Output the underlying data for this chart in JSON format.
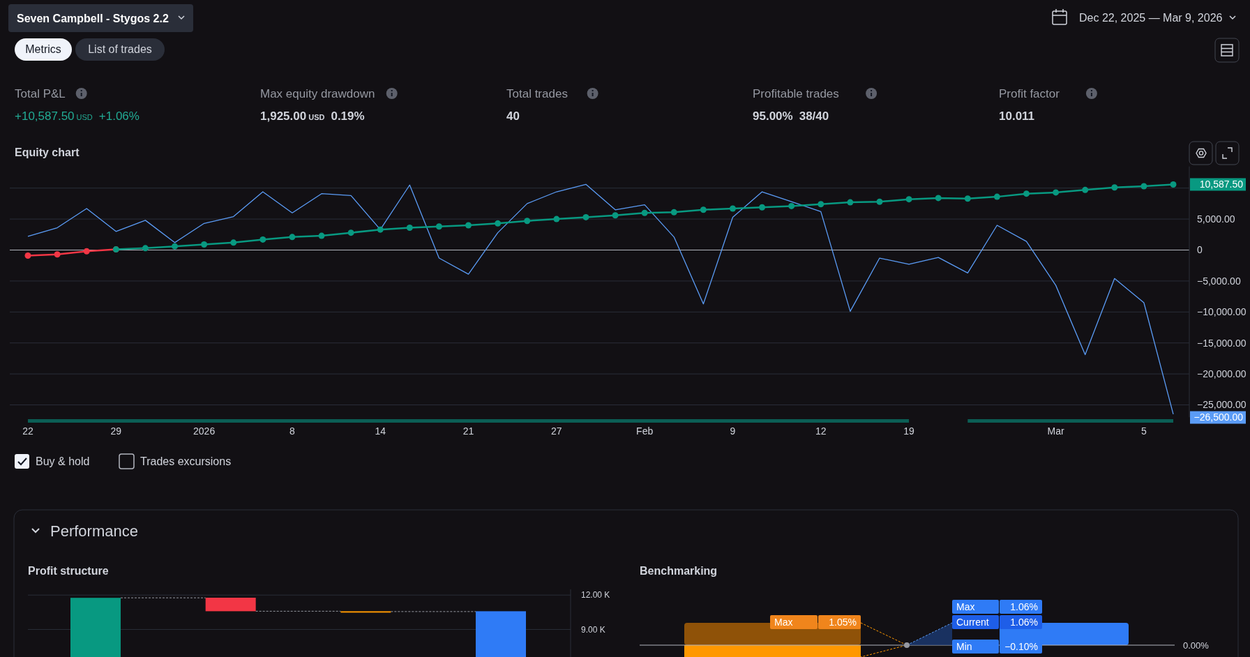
{
  "chart_data": [
    {
      "type": "other",
      "title": "Seven Campbell - Stygos 2.2",
      "annotations": [
        "Dec 22, 2025 — Mar 9, 2026",
        "Metrics",
        "List of trades",
        "Total P&L",
        "+10,587.50",
        "USD",
        "+1.06%",
        "Max equity drawdown",
        "1,925.00",
        "USD",
        "0.19%",
        "Total trades",
        "40",
        "Profitable trades",
        "95.00%",
        "38/40",
        "Profit factor",
        "10.011",
        "Performance"
      ]
    },
    {
      "type": "line",
      "title": "Equity chart",
      "categories": [
        "22",
        null,
        null,
        "29",
        null,
        null,
        "2026",
        null,
        null,
        "8",
        null,
        null,
        "14",
        null,
        null,
        "21",
        null,
        null,
        "27",
        null,
        null,
        "Feb",
        null,
        null,
        "9",
        null,
        null,
        "12",
        null,
        null,
        "19",
        null,
        null,
        null,
        null,
        "Mar",
        null,
        null,
        "5",
        null
      ],
      "series": [
        {
          "color": "#5b9cf6",
          "marker": "none",
          "values": [
            2200,
            3600,
            6700,
            3000,
            4800,
            1200,
            4300,
            5400,
            9400,
            6000,
            9100,
            8800,
            3300,
            10500,
            -1300,
            -3900,
            2800,
            7500,
            9400,
            10600,
            6500,
            7300,
            2100,
            -8700,
            5300,
            9400,
            7800,
            6200,
            -9900,
            -1300,
            -2300,
            -1200,
            -3700,
            4000,
            1400,
            -5700,
            -16900,
            -4600,
            -8500,
            -26500
          ]
        },
        {
          "color": "#f23645",
          "values": [
            -900,
            -700,
            -200,
            100,
            null,
            null,
            null,
            null,
            null,
            null,
            null,
            null,
            null,
            null,
            null,
            null,
            null,
            null,
            null,
            null,
            null,
            null,
            null,
            null,
            null,
            null,
            null,
            null,
            null,
            null,
            null,
            null,
            null,
            null,
            null,
            null,
            null,
            null,
            null,
            null
          ]
        },
        {
          "color": "#089981",
          "values": [
            null,
            null,
            null,
            100,
            300,
            600,
            900,
            1200,
            1700,
            2100,
            2300,
            2800,
            3300,
            3600,
            3800,
            4000,
            4300,
            4700,
            5000,
            5300,
            5600,
            6000,
            6100,
            6500,
            6700,
            6900,
            7100,
            7400,
            7700,
            7800,
            8200,
            8400,
            8300,
            8600,
            9100,
            9300,
            9700,
            10100,
            10300,
            10587.5
          ]
        }
      ],
      "marker": "circle",
      "ylim": [
        -27000,
        13500
      ],
      "yticks": [
        {
          "value": 10000,
          "label": null
        },
        {
          "value": 5000,
          "label": "5,000.00"
        },
        0,
        {
          "value": -5000,
          "label": "−5,000.00"
        },
        {
          "value": -10000,
          "label": "−10,000.00"
        },
        {
          "value": -15000,
          "label": "−15,000.00"
        },
        {
          "value": -20000,
          "label": "−20,000.00"
        },
        {
          "value": -25000,
          "label": "−25,000.00"
        }
      ],
      "grid": "y",
      "annotations": [
        "10,587.50",
        "−26,500.00",
        "Buy & hold",
        "Trades excursions"
      ]
    },
    {
      "type": "bar",
      "title": "Profit structure",
      "categories": [
        null,
        null,
        null,
        null
      ],
      "values": [
        11.76,
        1.18,
        0.03,
        10.59
      ],
      "base": [
        0,
        10.59,
        10.56,
        0
      ],
      "colors": [
        "#089981",
        "#f23645",
        "#ff9800",
        "#2f7bf6"
      ],
      "ylim": [
        6.6,
        12.5
      ],
      "yticks": [
        {
          "value": 12,
          "label": "12.00 K"
        },
        {
          "value": 9,
          "label": "9.00 K"
        }
      ],
      "grid": "y"
    },
    {
      "type": "other",
      "title": "Benchmarking",
      "annotations": [
        "Max",
        "1.05%",
        "Max",
        "1.06%",
        "Current",
        "1.06%",
        "Min",
        "−0.10%",
        "0.00%"
      ]
    }
  ]
}
